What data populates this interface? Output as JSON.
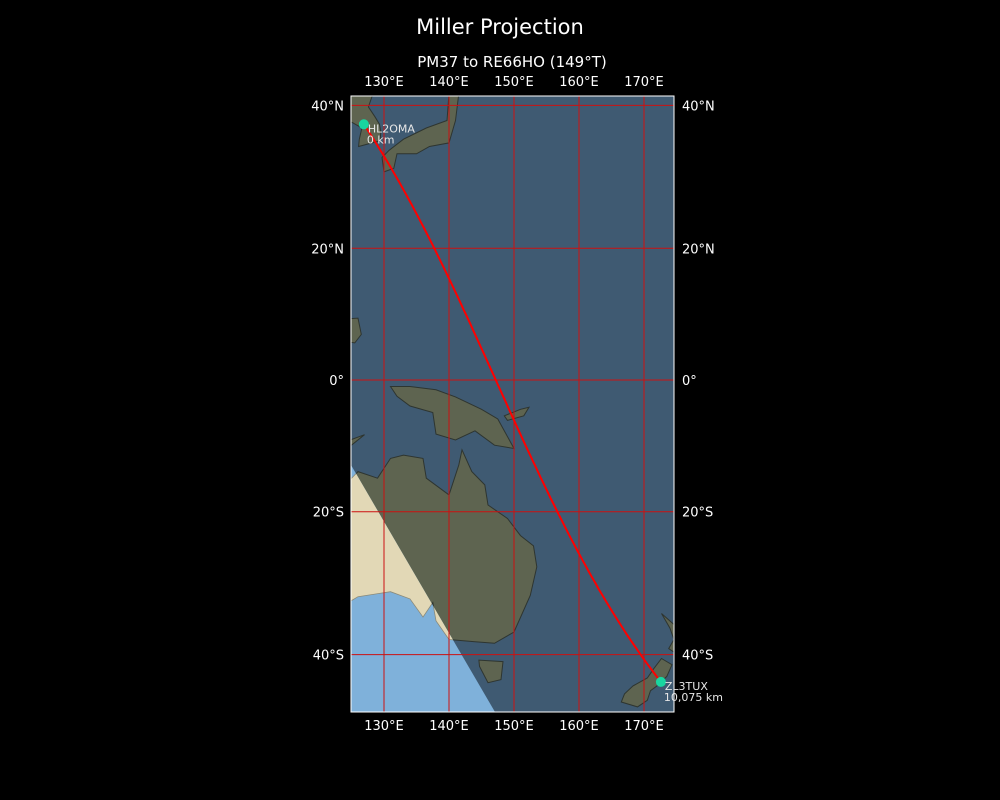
{
  "figure_title": "Miller Projection",
  "map_title": "PM37 to RE66HO (149°T)",
  "projection": "Miller",
  "extent": {
    "lon": [
      124.9,
      174.6
    ],
    "lat": [
      -48.3,
      41.3
    ]
  },
  "lon_ticks": [
    {
      "value": 130,
      "label": "130°E"
    },
    {
      "value": 140,
      "label": "140°E"
    },
    {
      "value": 150,
      "label": "150°E"
    },
    {
      "value": 160,
      "label": "160°E"
    },
    {
      "value": 170,
      "label": "170°E"
    }
  ],
  "lat_ticks": [
    {
      "value": 40,
      "label": "40°N"
    },
    {
      "value": 20,
      "label": "20°N"
    },
    {
      "value": 0,
      "label": "0°"
    },
    {
      "value": -20,
      "label": "20°S"
    },
    {
      "value": -40,
      "label": "40°S"
    }
  ],
  "stations": [
    {
      "call": "HL2OMA",
      "distance": "0 km",
      "lon": 126.9,
      "lat": 37.5
    },
    {
      "call": "ZL3TUX",
      "distance": "10,075 km",
      "lon": 172.6,
      "lat": -43.5
    }
  ],
  "colors": {
    "path": "#ff0000",
    "gridlines": "#cc1111",
    "station_marker": "#19d6a0",
    "ocean_night": "#3f5a72",
    "land_night": "#5e6450",
    "ocean_day": "#7fb1da",
    "land_day": "#e2d8b6"
  }
}
